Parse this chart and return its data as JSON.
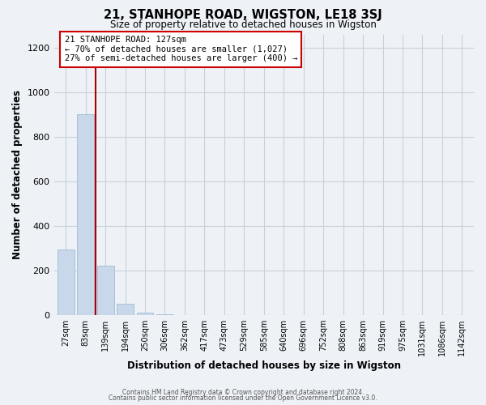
{
  "title": "21, STANHOPE ROAD, WIGSTON, LE18 3SJ",
  "subtitle": "Size of property relative to detached houses in Wigston",
  "xlabel": "Distribution of detached houses by size in Wigston",
  "ylabel": "Number of detached properties",
  "bar_labels": [
    "27sqm",
    "83sqm",
    "139sqm",
    "194sqm",
    "250sqm",
    "306sqm",
    "362sqm",
    "417sqm",
    "473sqm",
    "529sqm",
    "585sqm",
    "640sqm",
    "696sqm",
    "752sqm",
    "808sqm",
    "863sqm",
    "919sqm",
    "975sqm",
    "1031sqm",
    "1086sqm",
    "1142sqm"
  ],
  "bar_values": [
    295,
    900,
    220,
    50,
    10,
    2,
    0,
    0,
    0,
    0,
    0,
    0,
    0,
    0,
    0,
    0,
    0,
    0,
    0,
    0,
    0
  ],
  "bar_color": "#c8d8ea",
  "bar_edgecolor": "#a8c0d8",
  "ylim": [
    0,
    1260
  ],
  "yticks": [
    0,
    200,
    400,
    600,
    800,
    1000,
    1200
  ],
  "vline_color": "#aa0000",
  "annotation_title": "21 STANHOPE ROAD: 127sqm",
  "annotation_line1": "← 70% of detached houses are smaller (1,027)",
  "annotation_line2": "27% of semi-detached houses are larger (400) →",
  "annotation_box_facecolor": "#ffffff",
  "annotation_box_edgecolor": "#cc0000",
  "footer_line1": "Contains HM Land Registry data © Crown copyright and database right 2024.",
  "footer_line2": "Contains public sector information licensed under the Open Government Licence v3.0.",
  "background_color": "#eef2f7",
  "plot_bg_color": "#eef2f7",
  "grid_color": "#c8d0da"
}
